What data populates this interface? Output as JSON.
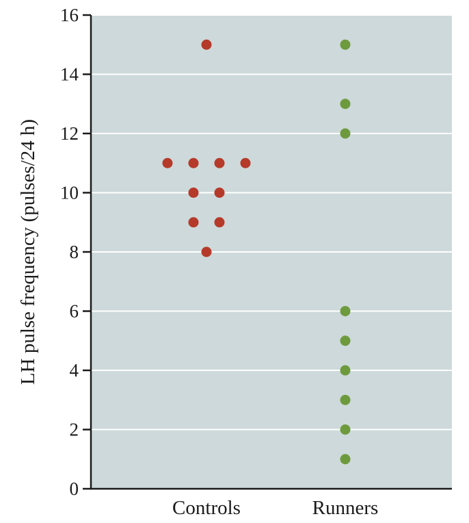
{
  "colors": {
    "plot_background": "#cdd9da",
    "gridline": "#ffffff",
    "axis": "#1a1a1a",
    "controls": "#b53a2a",
    "runners": "#6e9a3e"
  },
  "chart_data": {
    "type": "scatter",
    "title": "",
    "xlabel": "",
    "ylabel": "LH pulse frequency (pulses/24 h)",
    "categories": [
      "Controls",
      "Runners"
    ],
    "ylim": [
      0,
      16
    ],
    "yticks": [
      0,
      2,
      4,
      6,
      8,
      10,
      12,
      14,
      16
    ],
    "grid": true,
    "legend": "none",
    "series": [
      {
        "category": "Controls",
        "color": "#b53a2a",
        "points": [
          {
            "y": 15,
            "offset": 0
          },
          {
            "y": 11,
            "offset": -1.5
          },
          {
            "y": 11,
            "offset": -0.5
          },
          {
            "y": 11,
            "offset": 0.5
          },
          {
            "y": 11,
            "offset": 1.5
          },
          {
            "y": 10,
            "offset": -0.5
          },
          {
            "y": 10,
            "offset": 0.5
          },
          {
            "y": 9,
            "offset": -0.5
          },
          {
            "y": 9,
            "offset": 0.5
          },
          {
            "y": 8,
            "offset": 0
          }
        ]
      },
      {
        "category": "Runners",
        "color": "#6e9a3e",
        "points": [
          {
            "y": 15,
            "offset": 0
          },
          {
            "y": 13,
            "offset": 0
          },
          {
            "y": 12,
            "offset": 0
          },
          {
            "y": 6,
            "offset": 0
          },
          {
            "y": 5,
            "offset": 0
          },
          {
            "y": 4,
            "offset": 0
          },
          {
            "y": 3,
            "offset": 0
          },
          {
            "y": 2,
            "offset": 0
          },
          {
            "y": 1,
            "offset": 0
          }
        ]
      }
    ]
  }
}
